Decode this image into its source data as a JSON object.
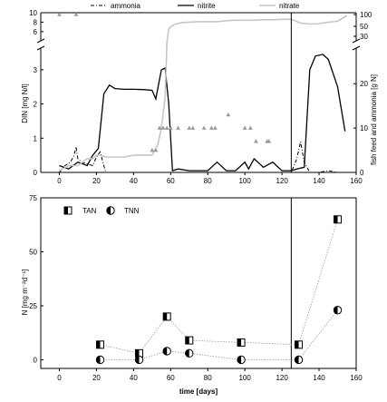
{
  "chart_data": [
    {
      "type": "line",
      "xlim": [
        -10,
        160
      ],
      "x_ticks": [
        0,
        20,
        40,
        60,
        80,
        100,
        120,
        140,
        160
      ],
      "ylabel": "DIN [mg N/l]",
      "ylim_lower": [
        0,
        3.5
      ],
      "yticks_lower": [
        0,
        1,
        2,
        3
      ],
      "ylim_upper": [
        5,
        10
      ],
      "yticks_upper": [
        6,
        8,
        10
      ],
      "y2label": "fish feed and ammonia [g N]",
      "y2ticks_lower": [
        0,
        10,
        20
      ],
      "y2ticks_upper": [
        30,
        50,
        100
      ],
      "vertical_line_x": 125,
      "legend": [
        "ammonia",
        "nitrite",
        "nitrate"
      ],
      "series": [
        {
          "name": "ammonia",
          "style": "dash-dot",
          "x": [
            0,
            3,
            6,
            8,
            9,
            10,
            12,
            15,
            18,
            20,
            22,
            25,
            125,
            128,
            130,
            132,
            135,
            140,
            145,
            150,
            155
          ],
          "y": [
            0,
            0.2,
            0.3,
            0.5,
            0.75,
            0.4,
            0.3,
            0.25,
            0.2,
            0.45,
            0.6,
            0,
            0,
            0.4,
            0.9,
            0.3,
            0,
            0,
            0.05,
            0,
            0
          ]
        },
        {
          "name": "nitrite",
          "style": "solid",
          "x": [
            0,
            5,
            10,
            15,
            18,
            21,
            24,
            27,
            30,
            35,
            40,
            45,
            50,
            52,
            55,
            57,
            59,
            61,
            64,
            70,
            75,
            80,
            85,
            90,
            95,
            100,
            102,
            105,
            110,
            115,
            120,
            125,
            128,
            132,
            135,
            138,
            142,
            145,
            150,
            154
          ],
          "y": [
            0.2,
            0.1,
            0.3,
            0.2,
            0.5,
            0.7,
            2.3,
            2.55,
            2.45,
            2.43,
            2.43,
            2.42,
            2.4,
            2.15,
            3.0,
            3.05,
            2.0,
            0.05,
            0.1,
            0.05,
            0.05,
            0.05,
            0.3,
            0.05,
            0.05,
            0.3,
            0.1,
            0.4,
            0.15,
            0.3,
            0.05,
            0.05,
            0.1,
            0.15,
            3.0,
            3.4,
            3.45,
            3.3,
            2.5,
            1.2
          ]
        },
        {
          "name": "nitrate",
          "style": "solid",
          "x": [
            0,
            5,
            10,
            15,
            18,
            20,
            22,
            25,
            30,
            35,
            40,
            45,
            50,
            53,
            55,
            57,
            58,
            59,
            60,
            62,
            66,
            70,
            75,
            80,
            85,
            90,
            95,
            100,
            105,
            110,
            115,
            120,
            125,
            130,
            135,
            140,
            145,
            150,
            155
          ],
          "y": [
            0.05,
            0.2,
            0.2,
            0.4,
            0.4,
            0.5,
            0.5,
            0.45,
            0.45,
            0.45,
            0.5,
            0.5,
            0.5,
            0.8,
            1.3,
            2.2,
            3.8,
            6.5,
            7.0,
            7.5,
            7.9,
            8.0,
            8.1,
            8.1,
            8.1,
            8.3,
            8.4,
            8.4,
            8.4,
            8.5,
            8.5,
            8.6,
            8.6,
            7.8,
            7.6,
            7.7,
            8.0,
            8.2,
            9.4
          ]
        },
        {
          "name": "fish feed",
          "style": "triangles",
          "x": [
            0,
            9,
            50,
            52,
            54,
            56,
            58,
            60,
            64,
            70,
            72,
            78,
            82,
            84,
            91,
            100,
            103,
            106,
            112,
            113
          ],
          "y": [
            100,
            100,
            5,
            5,
            10,
            10,
            10,
            10,
            10,
            10,
            10,
            10,
            10,
            10,
            13,
            10,
            10,
            7,
            7,
            7
          ]
        }
      ]
    },
    {
      "type": "scatter",
      "xlabel": "time [days]",
      "ylabel": "N [mg m⁻²d⁻¹]",
      "xlim": [
        -10,
        160
      ],
      "ylim": [
        -4,
        75
      ],
      "x_ticks": [
        0,
        20,
        40,
        60,
        80,
        100,
        120,
        140,
        160
      ],
      "y_ticks": [
        0,
        25,
        50,
        75
      ],
      "vertical_line_x": 125,
      "series": [
        {
          "name": "TAN",
          "marker": "square-half-filled",
          "x": [
            22,
            43,
            58,
            70,
            98,
            129,
            150
          ],
          "y": [
            7,
            3,
            20,
            9,
            8,
            7,
            65
          ]
        },
        {
          "name": "TNN",
          "marker": "circle-half-filled",
          "x": [
            22,
            43,
            58,
            70,
            98,
            129,
            150
          ],
          "y": [
            0,
            0,
            4,
            3,
            0,
            0,
            23
          ]
        }
      ]
    }
  ]
}
